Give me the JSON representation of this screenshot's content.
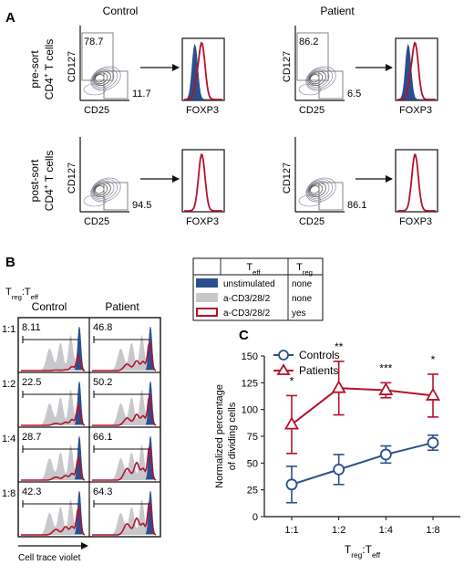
{
  "panel_a": {
    "label": "A",
    "col_labels": [
      "Control",
      "Patient"
    ],
    "row_labels": [
      [
        "pre-sort",
        "CD4",
        "+",
        " T cells"
      ],
      [
        "post-sort",
        "CD4",
        "+",
        " T cells"
      ]
    ],
    "axis_labels": {
      "cd127": "CD127",
      "cd25": "CD25",
      "foxp3": "FOXP3"
    },
    "gates": [
      {
        "col": 0,
        "row": 0,
        "top_left": "78.7",
        "bottom_right": "11.7"
      },
      {
        "col": 1,
        "row": 0,
        "top_left": "86.2",
        "bottom_right": "6.5"
      },
      {
        "col": 0,
        "row": 1,
        "top_left": "",
        "bottom_right": "94.5"
      },
      {
        "col": 1,
        "row": 1,
        "top_left": "",
        "bottom_right": "86.1"
      }
    ]
  },
  "panel_b": {
    "label": "B",
    "ratio_title_parts": [
      "T",
      "reg",
      ":T",
      "eff"
    ],
    "col_labels": [
      "Control",
      "Patient"
    ],
    "ratios": [
      "1:1",
      "1:2",
      "1:4",
      "1:8"
    ],
    "values": {
      "control": [
        "8.11",
        "22.5",
        "28.7",
        "42.3"
      ],
      "patient": [
        "46.8",
        "50.2",
        "66.1",
        "64.3"
      ]
    },
    "xlabel": "Cell trace violet"
  },
  "legend_table": {
    "head_teff": [
      "T",
      "eff"
    ],
    "head_treg": [
      "T",
      "reg"
    ],
    "rows": [
      {
        "label": "unstimulated",
        "treg": "none",
        "color": "#2b4f8e",
        "style": "fill"
      },
      {
        "label": "a-CD3/28/2",
        "treg": "none",
        "color": "#c7c7cc",
        "style": "fill"
      },
      {
        "label": "a-CD3/28/2",
        "treg": "yes",
        "color": "#b5122b",
        "style": "outline"
      }
    ]
  },
  "panel_c": {
    "label": "C",
    "significance": [
      "*",
      "**",
      "***",
      "*"
    ]
  },
  "chart_data": {
    "type": "line",
    "categories": [
      "1:1",
      "1:2",
      "1:4",
      "1:8"
    ],
    "series": [
      {
        "name": "Controls",
        "color": "#2b4f8e",
        "marker": "circle",
        "values": [
          30,
          44,
          58,
          69
        ],
        "error": [
          17,
          14,
          8,
          7
        ]
      },
      {
        "name": "Patients",
        "color": "#b5122b",
        "marker": "triangle",
        "values": [
          86,
          120,
          118,
          113
        ],
        "error": [
          27,
          25,
          7,
          20
        ]
      }
    ],
    "ylim": [
      0,
      150
    ],
    "yticks": [
      0,
      25,
      50,
      75,
      100,
      125,
      150
    ],
    "ylabel_lines": [
      "Normalized percentage",
      "of dividing cells"
    ],
    "xlabel_parts": [
      "T",
      "reg",
      ":T",
      "eff"
    ],
    "grid": false,
    "legend": "top-left"
  }
}
